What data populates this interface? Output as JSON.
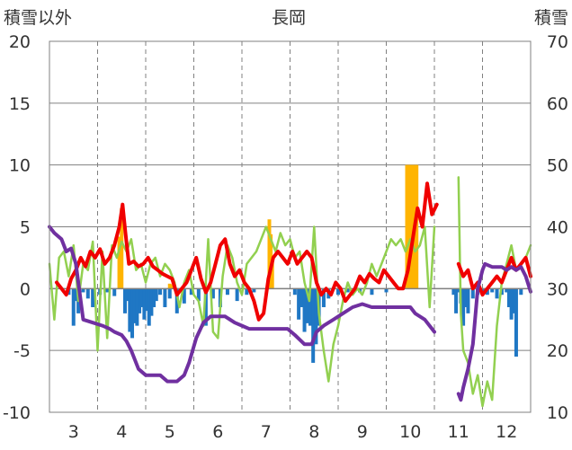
{
  "chart_data": {
    "type": "combo",
    "title": "長岡",
    "left_axis": {
      "label": "積雪以外",
      "ylim": [
        -10,
        20
      ],
      "ticks": [
        -10,
        -5,
        0,
        5,
        10,
        15,
        20
      ]
    },
    "right_axis": {
      "label": "積雪",
      "ylim": [
        10,
        70
      ],
      "ticks": [
        10,
        20,
        30,
        40,
        50,
        60,
        70
      ]
    },
    "x_axis": {
      "xlim": [
        2.5,
        12.5
      ],
      "tick_labels": [
        "3",
        "4",
        "5",
        "6",
        "7",
        "8",
        "9",
        "10",
        "11",
        "12"
      ],
      "tick_positions": [
        3,
        4,
        5,
        6,
        7,
        8,
        9,
        10,
        11,
        12
      ]
    },
    "grid": {
      "horizontal": "solid",
      "vertical": "dashed"
    },
    "colors": {
      "orange": "#FFB400",
      "blue": "#1F77C4",
      "red": "#F00000",
      "green": "#92D050",
      "purple": "#7030A0",
      "grid": "#808080"
    },
    "series": [
      {
        "type": "bar",
        "axis": "left",
        "color": "#FFB400",
        "x": [
          3.95,
          4.0,
          5.0,
          5.04,
          7.07,
          7.1,
          7.13,
          9.93,
          9.96,
          10.0,
          10.03,
          10.06,
          10.1,
          10.13
        ],
        "values": [
          4.2,
          6.5,
          0.4,
          0.3,
          5.6,
          4.4,
          2.5,
          10.0,
          10.0,
          10.0,
          10.0,
          10.0,
          10.0,
          10.0
        ]
      },
      {
        "type": "bar",
        "axis": "left",
        "color": "#1F77C4",
        "x": [
          2.9,
          3.0,
          3.05,
          3.1,
          3.2,
          3.3,
          3.4,
          3.55,
          3.7,
          3.85,
          4.07,
          4.12,
          4.17,
          4.22,
          4.27,
          4.32,
          4.37,
          4.42,
          4.47,
          4.52,
          4.57,
          4.62,
          4.67,
          4.72,
          4.8,
          4.9,
          5.0,
          5.15,
          5.3,
          5.45,
          5.6,
          5.75,
          5.9,
          6.05,
          6.2,
          6.4,
          6.6,
          6.75,
          7.6,
          7.68,
          7.74,
          7.8,
          7.86,
          7.92,
          7.98,
          8.04,
          8.1,
          8.2,
          8.3,
          8.5,
          8.7,
          8.95,
          9.2,
          9.5,
          10.9,
          10.95,
          11.0,
          11.05,
          11.1,
          11.15,
          11.2,
          11.3,
          11.4,
          11.5,
          11.6,
          11.7,
          11.8,
          11.9,
          12.0,
          12.05,
          12.1,
          12.15,
          12.2,
          12.3
        ],
        "values": [
          -0.5,
          -3.0,
          -1.0,
          -2.0,
          -0.3,
          -0.8,
          -1.5,
          -0.5,
          -0.3,
          -0.6,
          -2.0,
          -1.0,
          -3.5,
          -4.0,
          -2.8,
          -3.0,
          -2.0,
          -1.5,
          -2.5,
          -1.8,
          -3.0,
          -2.2,
          -1.5,
          -1.0,
          -0.5,
          -1.5,
          -0.8,
          -2.0,
          -1.2,
          -0.5,
          -1.0,
          -3.0,
          -0.8,
          -1.5,
          -0.5,
          -1.0,
          -0.5,
          -0.3,
          -0.5,
          -2.5,
          -1.5,
          -3.5,
          -2.8,
          -3.0,
          -6.0,
          -4.5,
          -3.0,
          -1.5,
          -0.8,
          -0.5,
          -0.3,
          -0.3,
          -0.5,
          -0.3,
          -0.5,
          -2.0,
          -0.3,
          -1.2,
          -3.0,
          -1.5,
          -2.0,
          -0.8,
          -0.5,
          -0.3,
          -0.5,
          -0.3,
          -0.8,
          -0.5,
          -0.3,
          -1.5,
          -2.5,
          -2.0,
          -5.5,
          -0.5
        ]
      },
      {
        "type": "line",
        "axis": "left",
        "color": "#F00000",
        "x": [
          2.65,
          2.75,
          2.85,
          2.95,
          3.05,
          3.15,
          3.25,
          3.35,
          3.45,
          3.55,
          3.65,
          3.75,
          3.85,
          3.95,
          4.02,
          4.08,
          4.15,
          4.25,
          4.35,
          4.45,
          4.55,
          4.65,
          4.75,
          4.85,
          4.95,
          5.05,
          5.15,
          5.25,
          5.35,
          5.45,
          5.55,
          5.65,
          5.75,
          5.85,
          5.95,
          6.05,
          6.15,
          6.25,
          6.35,
          6.45,
          6.55,
          6.65,
          6.75,
          6.85,
          6.95,
          7.05,
          7.15,
          7.25,
          7.35,
          7.45,
          7.55,
          7.65,
          7.75,
          7.85,
          7.95,
          8.05,
          8.15,
          8.25,
          8.35,
          8.45,
          8.55,
          8.65,
          8.75,
          8.85,
          8.95,
          9.05,
          9.15,
          9.25,
          9.35,
          9.45,
          9.55,
          9.65,
          9.75,
          9.85,
          9.95,
          10.05,
          10.15,
          10.25,
          10.35,
          10.45,
          10.55
        ],
        "values": [
          0.5,
          0.0,
          -0.5,
          0.8,
          1.5,
          2.5,
          1.8,
          3.0,
          2.5,
          3.2,
          2.0,
          2.5,
          3.5,
          5.0,
          6.8,
          4.5,
          2.0,
          2.2,
          1.8,
          2.0,
          2.5,
          1.8,
          1.5,
          1.2,
          1.0,
          0.8,
          -0.5,
          0.0,
          0.5,
          1.5,
          2.5,
          0.8,
          -0.3,
          0.5,
          2.0,
          3.5,
          4.0,
          2.0,
          1.0,
          1.5,
          0.5,
          0.0,
          -1.0,
          -2.5,
          -2.0,
          0.8,
          2.5,
          3.0,
          2.5,
          2.0,
          3.0,
          2.0,
          2.5,
          3.0,
          2.5,
          0.5,
          -0.5,
          0.0,
          -0.5,
          0.5,
          0.0,
          -1.0,
          -0.5,
          0.0,
          1.0,
          0.5,
          1.2,
          0.8,
          0.5,
          1.5,
          1.0,
          0.5,
          0.0,
          0.0,
          1.5,
          4.0,
          6.5,
          5.0,
          8.5,
          6.0,
          6.8
        ]
      },
      {
        "type": "line",
        "axis": "left",
        "color": "#F00000",
        "x": [
          11.0,
          11.1,
          11.2,
          11.3,
          11.4,
          11.5,
          11.6,
          11.7,
          11.8,
          11.9,
          12.0,
          12.1,
          12.2,
          12.3,
          12.4,
          12.5
        ],
        "values": [
          2.0,
          1.0,
          1.5,
          0.0,
          0.5,
          -0.5,
          0.0,
          0.5,
          1.0,
          0.5,
          1.5,
          2.5,
          1.5,
          2.0,
          2.5,
          1.0
        ]
      },
      {
        "type": "line",
        "axis": "left",
        "color": "#92D050",
        "x": [
          2.5,
          2.6,
          2.7,
          2.8,
          2.9,
          3.0,
          3.1,
          3.2,
          3.3,
          3.4,
          3.5,
          3.6,
          3.7,
          3.8,
          3.9,
          4.0,
          4.1,
          4.2,
          4.3,
          4.4,
          4.5,
          4.6,
          4.7,
          4.8,
          4.9,
          5.0,
          5.1,
          5.2,
          5.3,
          5.4,
          5.5,
          5.6,
          5.7,
          5.8,
          5.9,
          6.0,
          6.1,
          6.2,
          6.3,
          6.4,
          6.5,
          6.6,
          6.7,
          6.8,
          6.9,
          7.0,
          7.1,
          7.2,
          7.3,
          7.4,
          7.5,
          7.6,
          7.7,
          7.8,
          7.9,
          8.0,
          8.1,
          8.2,
          8.3,
          8.4,
          8.5,
          8.6,
          8.7,
          8.8,
          8.9,
          9.0,
          9.1,
          9.2,
          9.3,
          9.4,
          9.5,
          9.6,
          9.7,
          9.8,
          9.9,
          10.0,
          10.1,
          10.2,
          10.3,
          10.4,
          10.5
        ],
        "values": [
          2.0,
          -2.5,
          2.5,
          3.0,
          1.0,
          3.5,
          -1.0,
          2.0,
          1.5,
          3.8,
          -5.0,
          3.0,
          -4.0,
          3.5,
          2.5,
          3.8,
          3.0,
          4.0,
          1.5,
          2.0,
          0.5,
          2.0,
          2.5,
          1.0,
          2.0,
          1.5,
          0.5,
          -1.5,
          0.5,
          1.5,
          -0.5,
          -1.0,
          -3.0,
          4.0,
          -3.5,
          -4.0,
          1.0,
          3.5,
          2.5,
          0.5,
          -0.5,
          2.0,
          2.5,
          3.0,
          4.0,
          5.0,
          4.0,
          3.0,
          4.5,
          3.5,
          4.0,
          2.5,
          3.0,
          0.5,
          -1.0,
          5.0,
          -2.0,
          -5.0,
          -7.5,
          -4.5,
          -3.0,
          -1.0,
          0.5,
          -0.5,
          0.0,
          -0.5,
          0.5,
          2.0,
          1.0,
          2.0,
          3.0,
          4.0,
          3.5,
          4.0,
          3.0,
          4.0,
          3.0,
          3.5,
          5.0,
          -1.5,
          5.0
        ]
      },
      {
        "type": "line",
        "axis": "left",
        "color": "#92D050",
        "x": [
          11.0,
          11.05,
          11.1,
          11.2,
          11.3,
          11.4,
          11.5,
          11.6,
          11.7,
          11.8,
          11.9,
          12.0,
          12.1,
          12.2,
          12.3,
          12.4,
          12.5
        ],
        "values": [
          9.0,
          -2.0,
          -5.0,
          -6.0,
          -8.5,
          -7.0,
          -9.5,
          -7.5,
          -9.0,
          -3.0,
          0.5,
          2.0,
          3.5,
          1.5,
          2.0,
          2.5,
          3.5
        ]
      },
      {
        "type": "line",
        "axis": "right",
        "color": "#7030A0",
        "x": [
          2.5,
          2.6,
          2.75,
          2.85,
          2.95,
          3.05,
          3.2,
          3.4,
          3.6,
          3.75,
          3.85,
          4.0,
          4.1,
          4.2,
          4.35,
          4.5,
          4.65,
          4.8,
          4.95,
          5.15,
          5.3,
          5.4,
          5.55,
          5.7,
          5.85,
          6.0,
          6.15,
          6.35,
          6.5,
          6.65,
          6.85,
          7.05,
          7.25,
          7.45,
          7.6,
          7.8,
          7.95,
          8.05,
          8.2,
          8.4,
          8.6,
          8.8,
          9.0,
          9.2,
          9.4,
          9.6,
          9.8,
          10.0,
          10.1,
          10.3,
          10.5
        ],
        "values": [
          40.0,
          39.0,
          38.0,
          36.0,
          36.5,
          34.0,
          25.0,
          24.5,
          24.0,
          23.5,
          23.0,
          22.5,
          21.5,
          20.0,
          17.0,
          16.0,
          16.0,
          16.0,
          15.0,
          15.0,
          16.0,
          18.0,
          22.0,
          24.5,
          25.5,
          25.5,
          25.5,
          24.5,
          24.0,
          23.5,
          23.5,
          23.5,
          23.5,
          23.5,
          22.5,
          21.0,
          21.0,
          23.0,
          24.0,
          25.0,
          26.0,
          27.0,
          27.5,
          27.0,
          27.0,
          27.0,
          27.0,
          27.0,
          26.0,
          25.0,
          23.0
        ]
      },
      {
        "type": "line",
        "axis": "right",
        "color": "#7030A0",
        "x": [
          11.0,
          11.05,
          11.1,
          11.2,
          11.3,
          11.4,
          11.5,
          11.55,
          11.7,
          11.9,
          12.0,
          12.1,
          12.2,
          12.3,
          12.4,
          12.5
        ],
        "values": [
          13.0,
          12.0,
          14.0,
          17.0,
          21.0,
          30.0,
          33.0,
          34.0,
          33.5,
          33.5,
          33.0,
          33.5,
          33.0,
          33.5,
          32.0,
          29.5
        ]
      }
    ]
  }
}
